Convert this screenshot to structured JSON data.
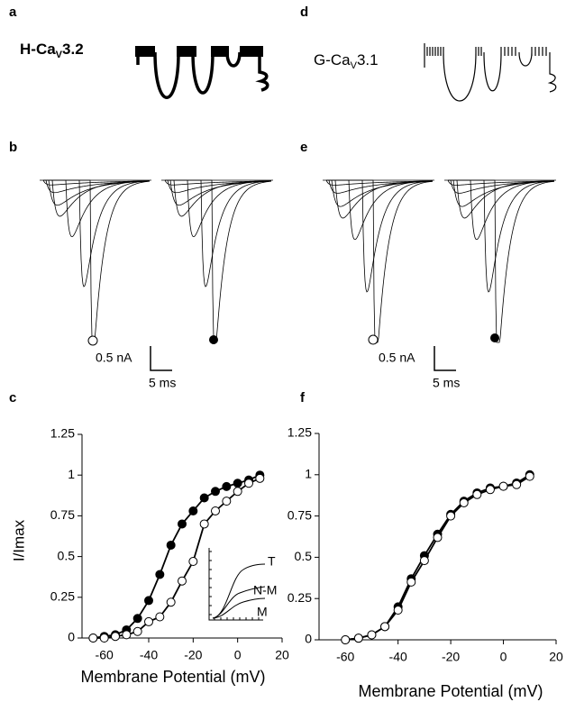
{
  "panel_labels": [
    "a",
    "b",
    "c",
    "d",
    "e",
    "f"
  ],
  "channels": [
    {
      "name_parts": [
        "H-Ca",
        "V",
        "3.2"
      ]
    },
    {
      "name_parts": [
        "G-Ca",
        "V",
        "3.1"
      ]
    }
  ],
  "scale_bars": [
    {
      "current": "0.5 nA",
      "time": "5 ms"
    },
    {
      "current": "0.5 nA",
      "time": "5 ms"
    }
  ],
  "chart_data": [
    {
      "type": "scatter",
      "ylabel": "I/Imax",
      "xlabel": "Membrane Potential (mV)",
      "x": [
        -65,
        -60,
        -55,
        -50,
        -45,
        -40,
        -35,
        -30,
        -25,
        -20,
        -15,
        -10,
        -5,
        0,
        5,
        10
      ],
      "series": [
        {
          "marker": "filled",
          "color": "#000000",
          "values": [
            0,
            0.01,
            0.02,
            0.05,
            0.12,
            0.23,
            0.39,
            0.57,
            0.7,
            0.78,
            0.86,
            0.9,
            0.93,
            0.95,
            0.97,
            1.0
          ]
        },
        {
          "marker": "open",
          "color": "#000000",
          "values": [
            0,
            0,
            0.01,
            0.02,
            0.04,
            0.1,
            0.13,
            0.22,
            0.35,
            0.47,
            0.7,
            0.78,
            0.84,
            0.9,
            0.95,
            0.98
          ]
        }
      ],
      "xlim": [
        -70,
        20
      ],
      "ylim": [
        0,
        1.25
      ],
      "xticks": [
        -60,
        -40,
        -20,
        0,
        20
      ],
      "yticks": [
        0,
        0.25,
        0.5,
        0.75,
        1,
        1.25
      ],
      "inset_labels": [
        "T",
        "N-M",
        "M"
      ]
    },
    {
      "type": "scatter",
      "xlabel": "Membrane Potential (mV)",
      "x": [
        -60,
        -55,
        -50,
        -45,
        -40,
        -35,
        -30,
        -25,
        -20,
        -15,
        -10,
        -5,
        0,
        5,
        10
      ],
      "series": [
        {
          "marker": "filled",
          "color": "#000000",
          "values": [
            0,
            0.01,
            0.03,
            0.08,
            0.2,
            0.37,
            0.51,
            0.64,
            0.76,
            0.84,
            0.89,
            0.92,
            0.93,
            0.95,
            1.0
          ]
        },
        {
          "marker": "open",
          "color": "#000000",
          "values": [
            0,
            0.01,
            0.03,
            0.08,
            0.18,
            0.35,
            0.48,
            0.62,
            0.75,
            0.83,
            0.88,
            0.91,
            0.93,
            0.94,
            0.99
          ]
        }
      ],
      "xlim": [
        -70,
        20
      ],
      "ylim": [
        0,
        1.25
      ],
      "xticks": [
        -60,
        -40,
        -20,
        0,
        20
      ],
      "yticks": [
        0,
        0.25,
        0.5,
        0.75,
        1,
        1.25
      ]
    }
  ]
}
